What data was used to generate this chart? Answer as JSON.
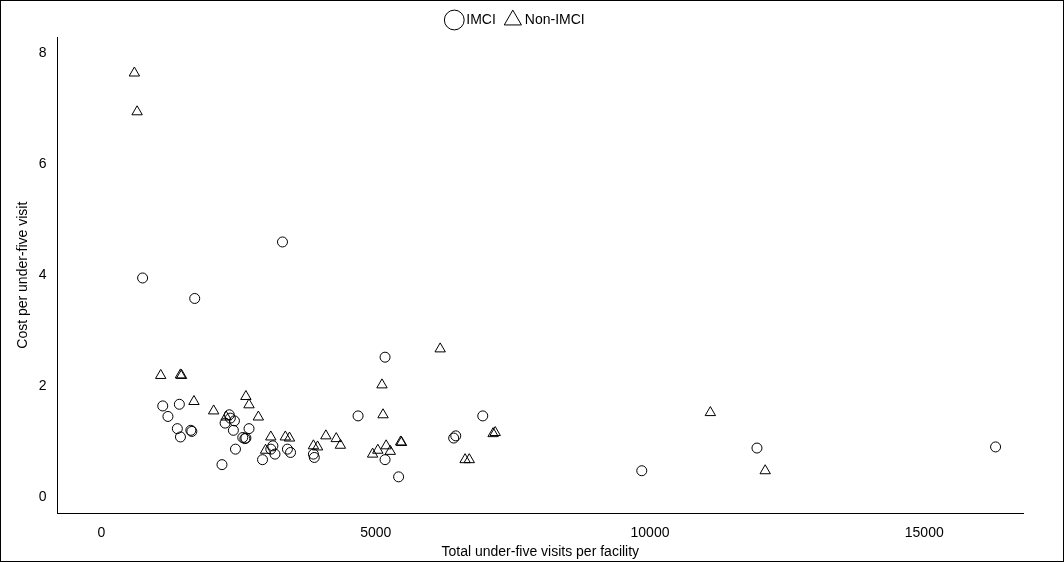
{
  "chart_data": {
    "type": "scatter",
    "xlabel": "Total under-five visits per facility",
    "ylabel": "Cost per under-five visit",
    "xlim": [
      -800,
      16800
    ],
    "ylim": [
      -0.3,
      8.3
    ],
    "xticks": [
      0,
      5000,
      10000,
      15000
    ],
    "yticks": [
      0,
      2,
      4,
      6,
      8
    ],
    "grid": false,
    "legend": "top",
    "series": [
      {
        "name": "IMCI",
        "color": "#000000",
        "marker": "circle",
        "x": [
          750,
          1700,
          3300,
          5170,
          4678,
          6951,
          9850,
          11950,
          16300,
          6459,
          6421,
          5170,
          5417,
          1117,
          1420,
          1212,
          1383,
          1440,
          1629,
          1648,
          2330,
          2349,
          2424,
          2254,
          2405,
          2690,
          2576,
          2614,
          2633,
          2443,
          2197,
          3125,
          3087,
          3163,
          2936,
          3390,
          3447,
          3864,
          3880
        ],
        "values": [
          3.95,
          3.58,
          4.6,
          2.52,
          1.46,
          1.46,
          0.47,
          0.88,
          0.9,
          1.1,
          1.06,
          0.67,
          0.36,
          1.64,
          1.67,
          1.45,
          1.23,
          1.08,
          1.2,
          1.18,
          1.48,
          1.42,
          1.37,
          1.33,
          1.2,
          1.23,
          1.07,
          1.05,
          1.06,
          0.86,
          0.58,
          0.92,
          0.86,
          0.77,
          0.67,
          0.86,
          0.8,
          0.77,
          0.71
        ]
      },
      {
        "name": "Non-IMCI",
        "color": "#000000",
        "marker": "triangle",
        "x": [
          600,
          650,
          6175,
          5114,
          5133,
          11100,
          12100,
          7178,
          7140,
          6629,
          6705,
          5455,
          5470,
          5190,
          5038,
          4943,
          5265,
          4091,
          4280,
          4356,
          3864,
          3940,
          1080,
          1440,
          1460,
          1686,
          2045,
          2633,
          2690,
          2860,
          2273,
          3087,
          3352,
          3428,
          2992
        ],
        "values": [
          7.65,
          6.95,
          2.67,
          2.02,
          1.48,
          1.52,
          0.47,
          1.16,
          1.14,
          0.67,
          0.67,
          0.99,
          0.98,
          0.92,
          0.84,
          0.77,
          0.82,
          1.1,
          1.05,
          0.93,
          0.92,
          0.9,
          2.19,
          2.2,
          2.19,
          1.72,
          1.55,
          1.81,
          1.66,
          1.44,
          1.44,
          1.08,
          1.08,
          1.06,
          0.84
        ]
      }
    ]
  }
}
